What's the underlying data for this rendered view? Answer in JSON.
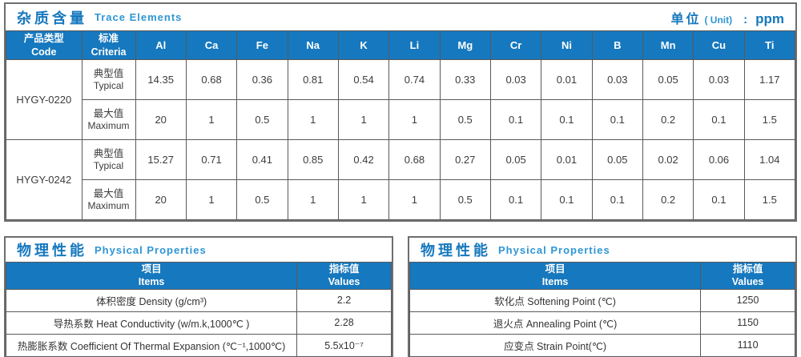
{
  "colors": {
    "accent_blue": "#1678be",
    "subtitle_blue": "#2e96d5",
    "border_gray": "#595959"
  },
  "trace": {
    "title_cn": "杂质含量",
    "title_en": "Trace Elements",
    "unit_label_cn": "单位",
    "unit_label_en": "( Unit)",
    "unit_colon": ":",
    "unit_value": "ppm",
    "col_code_cn": "产品类型",
    "col_code_en": "Code",
    "col_criteria_cn": "标准",
    "col_criteria_en": "Criteria",
    "elements": [
      "Al",
      "Ca",
      "Fe",
      "Na",
      "K",
      "Li",
      "Mg",
      "Cr",
      "Ni",
      "B",
      "Mn",
      "Cu",
      "Ti"
    ],
    "products": [
      {
        "code": "HYGY-0220",
        "rows": [
          {
            "type_cn": "典型值",
            "type_en": "Typical",
            "values": [
              "14.35",
              "0.68",
              "0.36",
              "0.81",
              "0.54",
              "0.74",
              "0.33",
              "0.03",
              "0.01",
              "0.03",
              "0.05",
              "0.03",
              "1.17"
            ]
          },
          {
            "type_cn": "最大值",
            "type_en": "Maximum",
            "values": [
              "20",
              "1",
              "0.5",
              "1",
              "1",
              "1",
              "0.5",
              "0.1",
              "0.1",
              "0.1",
              "0.2",
              "0.1",
              "1.5"
            ]
          }
        ]
      },
      {
        "code": "HYGY-0242",
        "rows": [
          {
            "type_cn": "典型值",
            "type_en": "Typical",
            "values": [
              "15.27",
              "0.71",
              "0.41",
              "0.85",
              "0.42",
              "0.68",
              "0.27",
              "0.05",
              "0.01",
              "0.05",
              "0.02",
              "0.06",
              "1.04"
            ]
          },
          {
            "type_cn": "最大值",
            "type_en": "Maximum",
            "values": [
              "20",
              "1",
              "0.5",
              "1",
              "1",
              "1",
              "0.5",
              "0.1",
              "0.1",
              "0.1",
              "0.2",
              "0.1",
              "1.5"
            ]
          }
        ]
      }
    ]
  },
  "physical_left": {
    "title_cn": "物理性能",
    "title_en": "Physical Properties",
    "col_items_cn": "项目",
    "col_items_en": "Items",
    "col_values_cn": "指标值",
    "col_values_en": "Values",
    "rows": [
      {
        "item": "体积密度 Density (g/cm³)",
        "value": "2.2"
      },
      {
        "item": "导热系数 Heat Conductivity (w/m.k,1000℃ )",
        "value": "2.28"
      },
      {
        "item": "热膨胀系数 Coefficient Of Thermal Expansion (℃⁻¹,1000℃)",
        "value": "5.5x10⁻⁷"
      }
    ]
  },
  "physical_right": {
    "title_cn": "物理性能",
    "title_en": "Physical Properties",
    "col_items_cn": "项目",
    "col_items_en": "Items",
    "col_values_cn": "指标值",
    "col_values_en": "Values",
    "rows": [
      {
        "item": "软化点 Softening Point (℃)",
        "value": "1250"
      },
      {
        "item": "退火点 Annealing Point (℃)",
        "value": "1150"
      },
      {
        "item": "应变点 Strain Point(℃)",
        "value": "1110"
      }
    ]
  }
}
